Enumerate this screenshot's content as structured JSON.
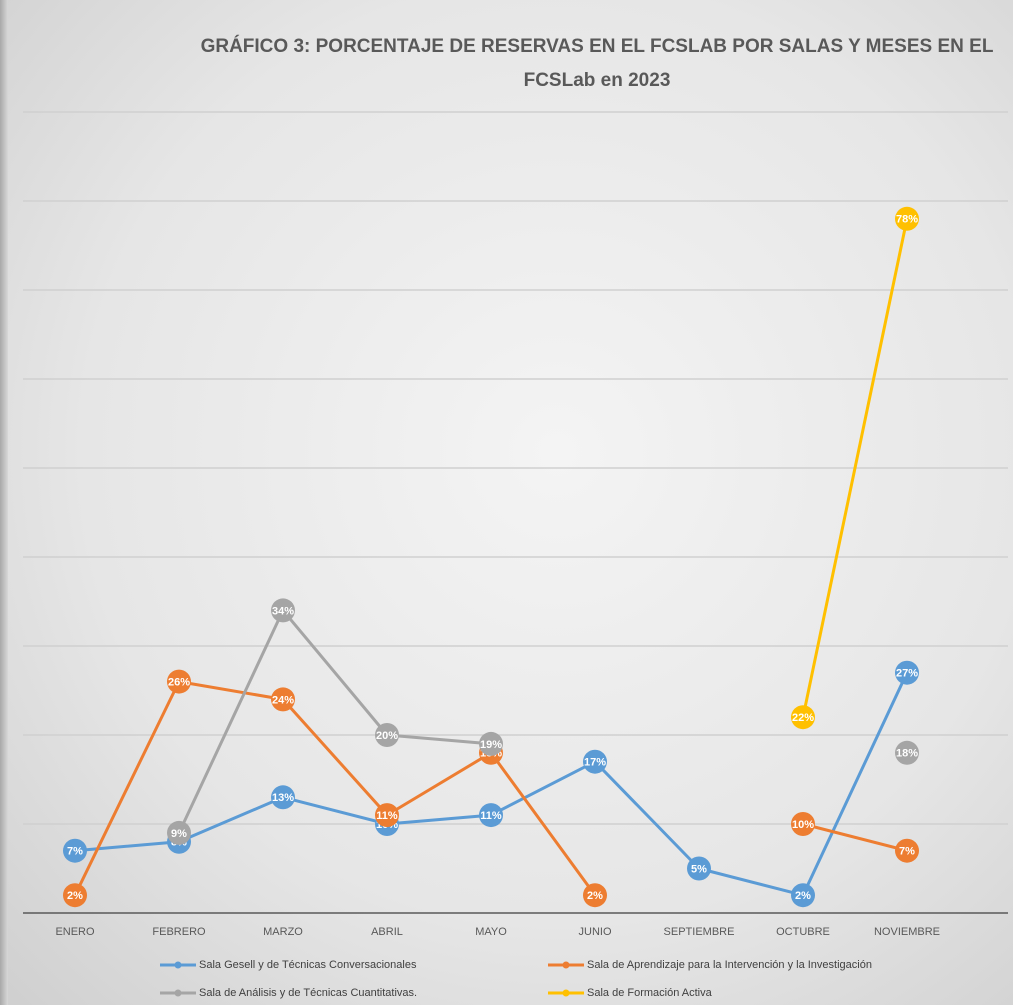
{
  "chart_data": {
    "type": "line",
    "title": "GRÁFICO 3: PORCENTAJE DE RESERVAS EN EL FCSLAB POR SALAS Y MESES EN EL FCSLab en 2023",
    "categories": [
      "ENERO",
      "FEBRERO",
      "MARZO",
      "ABRIL",
      "MAYO",
      "JUNIO",
      "SEPTIEMBRE",
      "OCTUBRE",
      "NOVIEMBRE"
    ],
    "series": [
      {
        "name": "Sala Gesell y de Técnicas Conversacionales",
        "color": "#5b9bd5",
        "values": [
          7,
          8,
          13,
          10,
          11,
          17,
          5,
          2,
          27
        ],
        "value_labels": [
          "7%",
          "8%",
          "13%",
          "10%",
          "11%",
          "17%",
          "5%",
          "2%",
          "27%"
        ]
      },
      {
        "name": "Sala de Aprendizaje para la Intervención y la Investigación",
        "color": "#ed7d31",
        "values": [
          2,
          26,
          24,
          11,
          18,
          2,
          null,
          10,
          7
        ],
        "value_labels": [
          "2%",
          "26%",
          "24%",
          "11%",
          "18%",
          "2%",
          null,
          "10%",
          "7%"
        ]
      },
      {
        "name": "Sala de Análisis y de Técnicas Cuantitativas.",
        "color": "#a5a5a5",
        "values": [
          null,
          9,
          34,
          20,
          19,
          null,
          null,
          null,
          18
        ],
        "value_labels": [
          null,
          "9%",
          "34%",
          "20%",
          "19%",
          null,
          null,
          null,
          "18%"
        ]
      },
      {
        "name": "Sala de Formación Activa",
        "color": "#ffc000",
        "values": [
          null,
          null,
          null,
          null,
          null,
          null,
          null,
          22,
          78
        ],
        "value_labels": [
          null,
          null,
          null,
          null,
          null,
          null,
          null,
          "22%",
          "78%"
        ]
      }
    ],
    "ylim": [
      0,
      90
    ],
    "yticks": [
      0,
      10,
      20,
      30,
      40,
      50,
      60,
      70,
      80,
      90
    ],
    "grid": true
  }
}
